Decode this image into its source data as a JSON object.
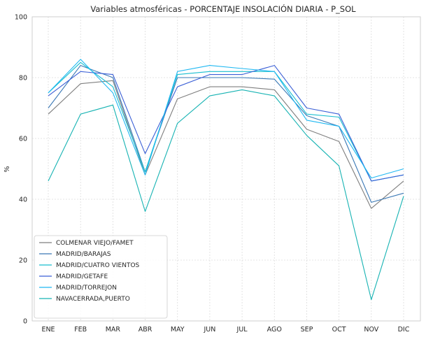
{
  "chart_data": {
    "type": "line",
    "title": "Variables atmosféricas - PORCENTAJE INSOLACIÓN DIARIA - P_SOL",
    "xlabel": "",
    "ylabel": "%",
    "ylim": [
      0,
      100
    ],
    "yticks": [
      "0",
      "20",
      "40",
      "60",
      "80",
      "100"
    ],
    "grid": true,
    "legend_position": "lower-left",
    "categories": [
      "ENE",
      "FEB",
      "MAR",
      "ABR",
      "MAY",
      "JUN",
      "JUL",
      "AGO",
      "SEP",
      "OCT",
      "NOV",
      "DIC"
    ],
    "series": [
      {
        "name": "COLMENAR VIEJO/FAMET",
        "color": "#7f7f7f",
        "values": [
          68,
          78,
          79,
          48,
          73,
          77,
          77,
          76,
          63,
          59,
          37,
          46
        ]
      },
      {
        "name": "MADRID/BARAJAS",
        "color": "#3a78b5",
        "values": [
          70,
          84,
          80,
          49,
          80,
          80,
          80,
          79.5,
          67.5,
          64,
          39,
          42
        ]
      },
      {
        "name": "MADRID/CUATRO VIENTOS",
        "color": "#17becf",
        "values": [
          75,
          85,
          77,
          49,
          81,
          82,
          82,
          82,
          68,
          67,
          46,
          48
        ]
      },
      {
        "name": "MADRID/GETAFE",
        "color": "#3b5fd6",
        "values": [
          74,
          82,
          81,
          55,
          77,
          81,
          81,
          84,
          70,
          68,
          46,
          48
        ]
      },
      {
        "name": "MADRID/TORREJON",
        "color": "#1fb8f2",
        "values": [
          75,
          86,
          75,
          48,
          82,
          84,
          83,
          82,
          66,
          64,
          47,
          50
        ]
      },
      {
        "name": "NAVACERRADA,PUERTO",
        "color": "#17b3b3",
        "values": [
          46,
          68,
          71,
          36,
          65,
          74,
          76,
          74,
          61,
          51,
          7,
          41
        ]
      }
    ]
  }
}
